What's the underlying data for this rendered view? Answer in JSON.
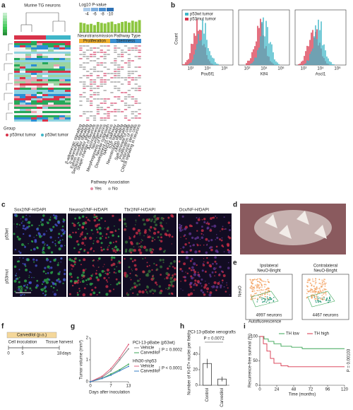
{
  "panels": {
    "a": {
      "label": "a",
      "title": "Murine TG neurons",
      "group_label": "Group",
      "groups": [
        {
          "name": "p53mut tumor",
          "color": "#d8334a"
        },
        {
          "name": "p53wt tumor",
          "color": "#3fb6c8"
        }
      ],
      "pvalue_title": "Log10 P-value",
      "pvalue_scale": [
        -4,
        -6,
        -8,
        -10
      ],
      "bar_values": [
        3.2,
        3.0,
        2.6,
        2.8,
        2.4,
        3.4,
        3.1,
        2.9,
        3.3,
        3.5,
        2.7,
        3.0,
        3.4,
        3.6,
        3.2,
        3.8,
        3.5,
        4.0
      ],
      "bar_ylim": [
        0,
        5
      ],
      "bar_color": "#8cc63f",
      "type_headers": [
        "Neurotransmission",
        "Pathway Type"
      ],
      "types": [
        "Proliferation",
        "Stemness"
      ],
      "pathways": [
        "β-adrenergic signaling",
        "α-adrenergic signaling",
        "Ephrin receptor signaling",
        "Serotonin receptor signaling",
        "Shape change of neurons",
        "Axonogenesis",
        "Neurogenesis",
        "Morphogenesis of neurons",
        "Neurite outgrowth",
        "Development of neurons",
        "NANOG pathway",
        "S1P signaling",
        "Neurotrophin signaling",
        "cAMP signaling",
        "Self-renewal of cells",
        "Proliferation of cells",
        "Embryonic stem cells",
        "CREB signaling in neurons"
      ],
      "association_title": "Pathway Association",
      "association": [
        "Yes",
        "No"
      ]
    },
    "b": {
      "label": "b",
      "legend": [
        {
          "name": "p53wt tumor",
          "color": "#3fb6c8"
        },
        {
          "name": "p53mut tumor",
          "color": "#d8334a"
        }
      ],
      "y_label": "Count",
      "genes": [
        "Pou5f1",
        "Klf4",
        "Ascl1"
      ],
      "x_tick_labels": [
        "10²",
        "10⁴",
        "10⁶"
      ]
    },
    "c": {
      "label": "c",
      "stains": [
        "Sox2/NF-H/DAPI",
        "Neurog2/NF-H/DAPI",
        "Tbr2/NF-H/DAPI",
        "Dcx/NF-H/DAPI"
      ],
      "rows": [
        "p53wt",
        "p53mut"
      ],
      "scale_bar": "100 µm"
    },
    "d": {
      "label": "d"
    },
    "e": {
      "label": "e",
      "plots": [
        {
          "title": "Ipsilateral",
          "gate": "NeuO-Bright",
          "count": "4997 neurons"
        },
        {
          "title": "Contralateral",
          "gate": "NeuO-Bright",
          "count": "4467 neurons"
        }
      ],
      "y_label": "NeuO",
      "x_label": "Autofluorescence"
    },
    "f": {
      "label": "f",
      "drug": "Carvedilol (p.o.)",
      "events": [
        "Cell inoculation",
        "Tissue harvest"
      ],
      "ticks": [
        0,
        5,
        18
      ],
      "unit": "days"
    },
    "g": {
      "label": "g",
      "y_label": "Tumor volume (mm³)",
      "x_label": "Days after inoculation",
      "x": [
        0,
        4,
        7,
        10,
        13
      ],
      "xlim": [
        0,
        13
      ],
      "xticks": [
        0,
        7,
        13
      ],
      "ylim": [
        0,
        2
      ],
      "yticks": [
        0,
        1,
        2
      ],
      "groups": [
        {
          "title": "PCI-13-pBabe (p53wt)",
          "p": "P = 0.0002"
        },
        {
          "title": "HN30-shp53",
          "p": "P < 0.0001"
        }
      ],
      "series": [
        {
          "name": "Vehicle",
          "group": 0,
          "color": "#8a8a8a",
          "values": [
            0,
            0.2,
            0.5,
            1.0,
            1.5
          ]
        },
        {
          "name": "Carvedilol",
          "group": 0,
          "color": "#3aa655",
          "values": [
            0,
            0.15,
            0.35,
            0.55,
            0.8
          ]
        },
        {
          "name": "Vehicle",
          "group": 1,
          "color": "#e0607e",
          "values": [
            0,
            0.25,
            0.6,
            1.1,
            1.7
          ]
        },
        {
          "name": "Carvedilol",
          "group": 1,
          "color": "#3a7fc4",
          "values": [
            0,
            0.15,
            0.3,
            0.5,
            0.7
          ]
        }
      ]
    },
    "h": {
      "label": "h",
      "title": "PCI-13-pBabe xenografts",
      "p": "P = 0.0072",
      "y_label": "Number of Ki-67+ nuclei per field",
      "categories": [
        "Control",
        "Carvedilol"
      ],
      "values": [
        28,
        8
      ],
      "errors": [
        6,
        3
      ],
      "ylim": [
        0,
        50
      ],
      "yticks": [
        0,
        20,
        40
      ]
    },
    "i": {
      "label": "i",
      "y_label": "Recurrence-free survival (%)",
      "x_label": "Time (months)",
      "p": "P = 0.00103",
      "xlim": [
        0,
        120
      ],
      "xticks": [
        0,
        24,
        48,
        72,
        96,
        120
      ],
      "ylim": [
        0,
        100
      ],
      "yticks": [
        0,
        50,
        100
      ],
      "series": [
        {
          "name": "TH low",
          "color": "#3aa655",
          "x": [
            0,
            6,
            12,
            20,
            30,
            45,
            60,
            120
          ],
          "values": [
            100,
            95,
            90,
            85,
            80,
            78,
            75,
            75
          ]
        },
        {
          "name": "TH high",
          "color": "#d8334a",
          "x": [
            0,
            5,
            10,
            15,
            20,
            30,
            40,
            120
          ],
          "values": [
            100,
            85,
            70,
            55,
            45,
            40,
            38,
            38
          ]
        }
      ]
    }
  }
}
